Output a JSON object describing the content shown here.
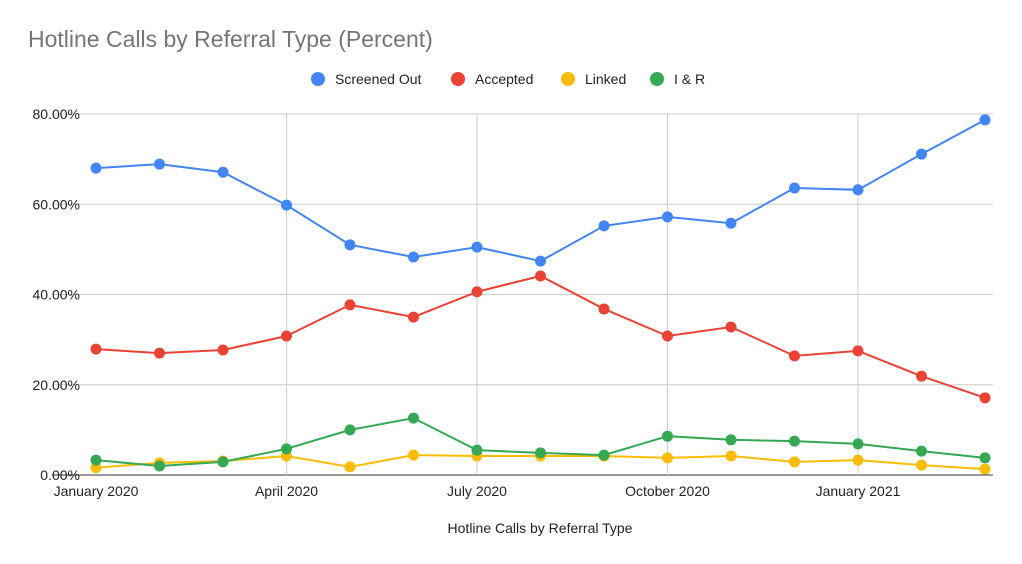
{
  "chart_data": {
    "type": "line",
    "title": "Hotline Calls by Referral Type (Percent)",
    "xlabel": "Hotline Calls by Referral Type",
    "ylabel": "",
    "x": [
      "2020-01",
      "2020-02",
      "2020-03",
      "2020-04",
      "2020-05",
      "2020-06",
      "2020-07",
      "2020-08",
      "2020-09",
      "2020-10",
      "2020-11",
      "2020-12",
      "2021-01",
      "2021-02",
      "2021-03"
    ],
    "x_tick_labels": [
      {
        "x": "2020-01",
        "label": "January 2020"
      },
      {
        "x": "2020-04",
        "label": "April 2020"
      },
      {
        "x": "2020-07",
        "label": "July 2020"
      },
      {
        "x": "2020-10",
        "label": "October 2020"
      },
      {
        "x": "2021-01",
        "label": "January 2021"
      }
    ],
    "y_ticks": [
      0,
      20,
      40,
      60,
      80
    ],
    "y_tick_labels": [
      "0.00%",
      "20.00%",
      "40.00%",
      "60.00%",
      "80.00%"
    ],
    "ylim": [
      0,
      80
    ],
    "grid": true,
    "legend_position": "top",
    "series": [
      {
        "name": "Screened Out",
        "color": "#4285f4",
        "values": [
          68.0,
          68.9,
          67.1,
          59.8,
          51.0,
          48.3,
          50.5,
          47.4,
          55.2,
          57.2,
          55.8,
          63.6,
          63.2,
          71.1,
          78.7
        ]
      },
      {
        "name": "Accepted",
        "color": "#ea4335",
        "values": [
          27.9,
          27.0,
          27.7,
          30.8,
          37.7,
          35.0,
          40.6,
          44.1,
          36.8,
          30.8,
          32.8,
          26.4,
          27.5,
          21.9,
          17.1
        ]
      },
      {
        "name": "Linked",
        "color": "#fbbc04",
        "values": [
          1.6,
          2.7,
          3.1,
          4.2,
          1.8,
          4.4,
          4.2,
          4.2,
          4.2,
          3.8,
          4.2,
          2.9,
          3.3,
          2.2,
          1.3
        ]
      },
      {
        "name": "I & R",
        "color": "#34a853",
        "values": [
          3.3,
          2.0,
          2.9,
          5.8,
          10.0,
          12.6,
          5.5,
          4.9,
          4.4,
          8.6,
          7.8,
          7.5,
          6.9,
          5.3,
          3.8
        ]
      }
    ]
  }
}
